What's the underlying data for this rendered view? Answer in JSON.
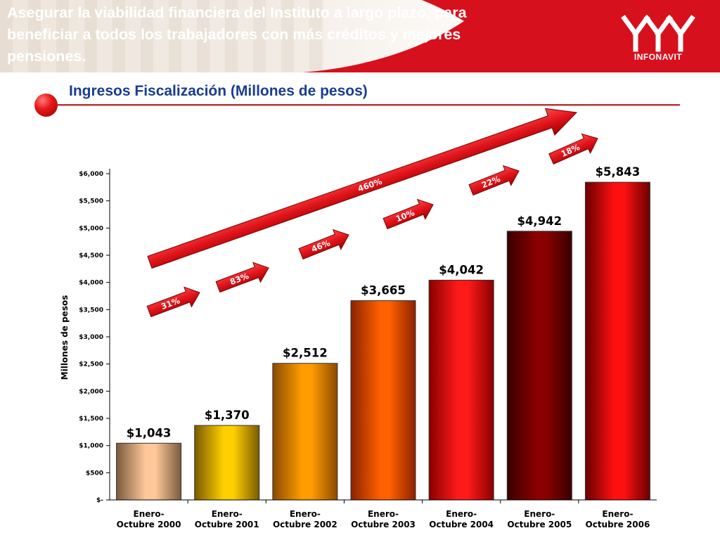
{
  "header": {
    "text": "Asegurar la viabilidad financiera del Instituto a largo plazo, para beneficiar a todos los trabajadores con más créditos y mejores pensiones.",
    "logo_text": "INFONAVIT"
  },
  "colors": {
    "header_red": "#d7101e",
    "title_blue": "#1a3d8f",
    "arrow_red": "#e0141b"
  },
  "chart_data": {
    "type": "bar",
    "title": "Ingresos Fiscalización (Millones de pesos)",
    "ylabel": "Millones de pesos",
    "xlabel": "",
    "ylim": [
      0,
      6000
    ],
    "grid": false,
    "categories": [
      [
        "Enero-",
        "Octubre 2000"
      ],
      [
        "Enero-",
        "Octubre 2001"
      ],
      [
        "Enero-",
        "Octubre 2002"
      ],
      [
        "Enero-",
        "Octubre 2003"
      ],
      [
        "Enero-",
        "Octubre 2004"
      ],
      [
        "Enero-",
        "Octubre 2005"
      ],
      [
        "Enero-",
        "Octubre 2006"
      ]
    ],
    "values": [
      1043,
      1370,
      2512,
      3665,
      4042,
      4942,
      5843
    ],
    "value_labels": [
      "$1,043",
      "$1,370",
      "$2,512",
      "$3,665",
      "$4,042",
      "$4,942",
      "$5,843"
    ],
    "bar_colors": [
      [
        "#7a5a3e",
        "#ffc899"
      ],
      [
        "#7a5a00",
        "#ffd000"
      ],
      [
        "#8a4a00",
        "#ff9c00"
      ],
      [
        "#8a2200",
        "#ff6000"
      ],
      [
        "#8a0000",
        "#ff1a1a"
      ],
      [
        "#3a0000",
        "#8a0000"
      ],
      [
        "#6a0000",
        "#ff1010"
      ]
    ],
    "yticks": [
      {
        "value": 6000,
        "label": "$6,000"
      },
      {
        "value": 5500,
        "label": "$5,500"
      },
      {
        "value": 5000,
        "label": "$5,000"
      },
      {
        "value": 4500,
        "label": "$4,500"
      },
      {
        "value": 4000,
        "label": "$4,000"
      },
      {
        "value": 3500,
        "label": "$3,500"
      },
      {
        "value": 3000,
        "label": "$3,000"
      },
      {
        "value": 2500,
        "label": "$2,500"
      },
      {
        "value": 2000,
        "label": "$2,000"
      },
      {
        "value": 1500,
        "label": "$1,500"
      },
      {
        "value": 1000,
        "label": "$1,000"
      },
      {
        "value": 500,
        "label": "$500"
      },
      {
        "value": 0,
        "label": "$-"
      }
    ],
    "growth_annotations": [
      "31%",
      "83%",
      "46%",
      "10%",
      "22%",
      "18%"
    ],
    "overall_growth": "460%"
  }
}
